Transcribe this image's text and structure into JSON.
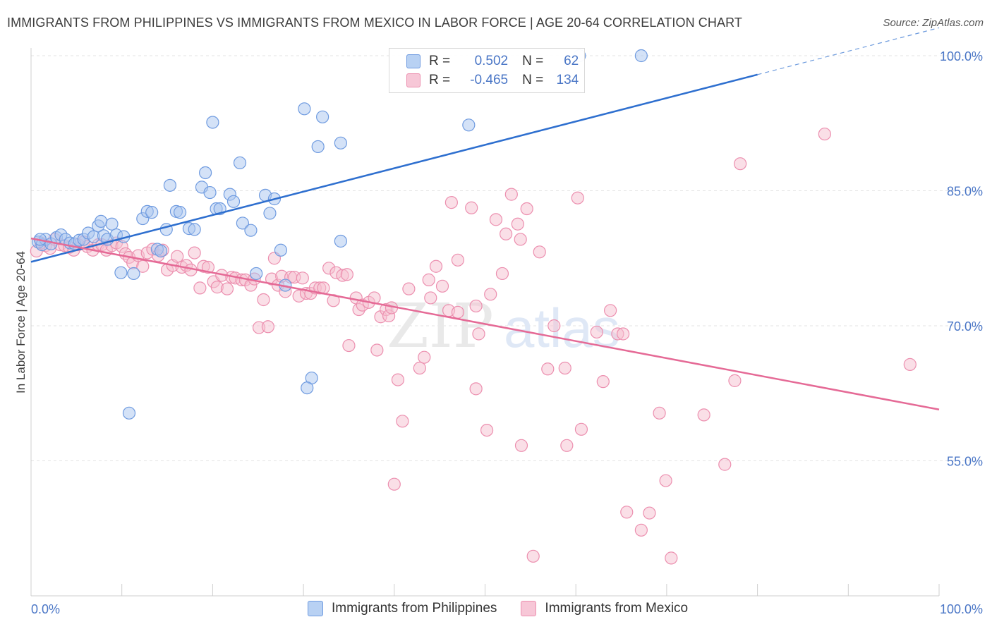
{
  "header": {
    "title": "IMMIGRANTS FROM PHILIPPINES VS IMMIGRANTS FROM MEXICO IN LABOR FORCE | AGE 20-64 CORRELATION CHART",
    "source": "Source: ZipAtlas.com"
  },
  "legend": {
    "r_label": "R =",
    "n_label": "N =",
    "rows": [
      {
        "r": "0.502",
        "n": "62"
      },
      {
        "r": "-0.465",
        "n": "134"
      }
    ]
  },
  "watermark": {
    "zip": "ZIP",
    "atlas": "atlas"
  },
  "colors": {
    "blue_fill": "#a9c6ef",
    "blue_stroke": "#6f9be0",
    "blue_line": "#2e6fcf",
    "pink_fill": "#f6bfd0",
    "pink_stroke": "#ec8faf",
    "pink_line": "#e56a96",
    "tick_label": "#4a76c6"
  },
  "chart_data": {
    "type": "scatter",
    "title": "IMMIGRANTS FROM PHILIPPINES VS IMMIGRANTS FROM MEXICO IN LABOR FORCE | AGE 20-64 CORRELATION CHART",
    "xlabel": "",
    "ylabel": "In Labor Force | Age 20-64",
    "xlim": [
      0,
      100
    ],
    "ylim": [
      40,
      101.5
    ],
    "x_tick_labels": [
      "0.0%",
      "100.0%"
    ],
    "y_ticks": [
      55,
      70,
      85,
      100
    ],
    "y_tick_labels": [
      "55.0%",
      "70.0%",
      "85.0%",
      "100.0%"
    ],
    "series": [
      {
        "name": "Immigrants from Philippines",
        "r": 0.502,
        "n": 62,
        "trend": {
          "x0": 0,
          "y0": 77.1,
          "x1": 80,
          "y1": 97.9,
          "dash_to_x": 100
        },
        "points": [
          [
            0.8,
            79.3
          ],
          [
            1.2,
            79.0
          ],
          [
            1.6,
            79.6
          ],
          [
            2.2,
            79.1
          ],
          [
            2.8,
            79.8
          ],
          [
            3.3,
            80.1
          ],
          [
            3.8,
            79.6
          ],
          [
            4.3,
            79.2
          ],
          [
            4.8,
            79.1
          ],
          [
            5.3,
            79.5
          ],
          [
            5.8,
            79.6
          ],
          [
            6.3,
            80.3
          ],
          [
            6.9,
            79.9
          ],
          [
            7.4,
            81.1
          ],
          [
            7.7,
            81.6
          ],
          [
            8.0,
            80.0
          ],
          [
            8.4,
            79.6
          ],
          [
            8.9,
            81.3
          ],
          [
            9.4,
            80.1
          ],
          [
            10.2,
            79.9
          ],
          [
            9.9,
            75.9
          ],
          [
            11.3,
            75.8
          ],
          [
            12.3,
            81.9
          ],
          [
            12.8,
            82.7
          ],
          [
            13.3,
            82.6
          ],
          [
            13.9,
            78.5
          ],
          [
            14.3,
            78.3
          ],
          [
            14.9,
            80.7
          ],
          [
            15.3,
            85.6
          ],
          [
            16.0,
            82.7
          ],
          [
            16.4,
            82.6
          ],
          [
            17.4,
            80.8
          ],
          [
            18.0,
            80.7
          ],
          [
            18.8,
            85.4
          ],
          [
            19.2,
            87.0
          ],
          [
            19.7,
            84.8
          ],
          [
            20.0,
            92.6
          ],
          [
            20.4,
            83.0
          ],
          [
            20.8,
            83.0
          ],
          [
            21.9,
            84.6
          ],
          [
            22.3,
            83.8
          ],
          [
            23.0,
            88.1
          ],
          [
            23.3,
            81.4
          ],
          [
            24.2,
            80.6
          ],
          [
            24.8,
            75.8
          ],
          [
            25.8,
            84.5
          ],
          [
            26.3,
            82.5
          ],
          [
            26.8,
            84.1
          ],
          [
            27.5,
            78.4
          ],
          [
            28.0,
            74.5
          ],
          [
            30.1,
            94.1
          ],
          [
            30.9,
            64.2
          ],
          [
            30.4,
            63.1
          ],
          [
            31.6,
            89.9
          ],
          [
            32.1,
            93.2
          ],
          [
            34.1,
            90.3
          ],
          [
            34.1,
            79.4
          ],
          [
            10.8,
            60.3
          ],
          [
            48.2,
            92.3
          ],
          [
            60.4,
            100.0
          ],
          [
            67.2,
            100.0
          ],
          [
            1.0,
            79.6
          ]
        ]
      },
      {
        "name": "Immigrants from Mexico",
        "r": -0.465,
        "n": 134,
        "trend": {
          "x0": 0,
          "y0": 79.7,
          "x1": 100,
          "y1": 60.7
        },
        "points": [
          [
            0.6,
            78.3
          ],
          [
            1.1,
            79.2
          ],
          [
            1.6,
            78.9
          ],
          [
            2.1,
            78.6
          ],
          [
            2.6,
            79.6
          ],
          [
            3.2,
            79.0
          ],
          [
            3.7,
            78.9
          ],
          [
            4.2,
            78.7
          ],
          [
            4.7,
            78.4
          ],
          [
            5.2,
            79.0
          ],
          [
            5.8,
            79.3
          ],
          [
            6.2,
            78.8
          ],
          [
            6.8,
            78.4
          ],
          [
            7.4,
            79.0
          ],
          [
            7.8,
            79.0
          ],
          [
            8.3,
            78.4
          ],
          [
            8.9,
            78.9
          ],
          [
            9.4,
            79.2
          ],
          [
            10.0,
            78.8
          ],
          [
            10.4,
            78.0
          ],
          [
            10.8,
            77.6
          ],
          [
            11.2,
            77.0
          ],
          [
            11.8,
            77.8
          ],
          [
            12.3,
            76.6
          ],
          [
            12.8,
            78.1
          ],
          [
            13.4,
            78.5
          ],
          [
            14.0,
            77.8
          ],
          [
            14.5,
            78.4
          ],
          [
            15.0,
            76.2
          ],
          [
            15.6,
            76.7
          ],
          [
            16.1,
            77.7
          ],
          [
            16.6,
            76.5
          ],
          [
            17.1,
            76.7
          ],
          [
            17.6,
            76.2
          ],
          [
            18.0,
            78.1
          ],
          [
            18.6,
            74.2
          ],
          [
            19.0,
            76.6
          ],
          [
            19.5,
            76.5
          ],
          [
            20.1,
            74.9
          ],
          [
            20.5,
            74.3
          ],
          [
            21.0,
            75.6
          ],
          [
            21.6,
            74.1
          ],
          [
            22.1,
            75.4
          ],
          [
            22.5,
            75.3
          ],
          [
            23.2,
            75.1
          ],
          [
            23.6,
            75.1
          ],
          [
            24.2,
            74.5
          ],
          [
            24.6,
            75.2
          ],
          [
            25.1,
            69.8
          ],
          [
            25.6,
            72.9
          ],
          [
            26.1,
            69.9
          ],
          [
            26.8,
            77.5
          ],
          [
            26.5,
            75.2
          ],
          [
            27.2,
            74.5
          ],
          [
            27.6,
            75.5
          ],
          [
            28.0,
            73.8
          ],
          [
            28.6,
            75.4
          ],
          [
            29.0,
            75.4
          ],
          [
            29.5,
            73.3
          ],
          [
            29.9,
            75.3
          ],
          [
            30.3,
            73.6
          ],
          [
            30.8,
            73.6
          ],
          [
            31.3,
            74.2
          ],
          [
            31.8,
            74.2
          ],
          [
            32.2,
            74.2
          ],
          [
            32.8,
            76.4
          ],
          [
            33.3,
            72.8
          ],
          [
            33.6,
            75.9
          ],
          [
            34.3,
            75.6
          ],
          [
            34.8,
            75.7
          ],
          [
            35.0,
            67.8
          ],
          [
            35.8,
            73.1
          ],
          [
            36.1,
            71.8
          ],
          [
            36.5,
            72.3
          ],
          [
            37.2,
            72.6
          ],
          [
            37.8,
            73.1
          ],
          [
            38.1,
            67.3
          ],
          [
            38.5,
            71.0
          ],
          [
            39.1,
            71.8
          ],
          [
            39.4,
            71.1
          ],
          [
            39.7,
            72.0
          ],
          [
            40.0,
            52.4
          ],
          [
            40.4,
            64.0
          ],
          [
            40.9,
            59.4
          ],
          [
            41.6,
            74.1
          ],
          [
            42.8,
            65.3
          ],
          [
            43.3,
            66.5
          ],
          [
            43.8,
            75.1
          ],
          [
            44.0,
            73.1
          ],
          [
            44.6,
            76.6
          ],
          [
            45.3,
            74.4
          ],
          [
            46.3,
            83.7
          ],
          [
            46.0,
            71.7
          ],
          [
            47.0,
            77.3
          ],
          [
            48.5,
            83.1
          ],
          [
            49.0,
            72.2
          ],
          [
            49.0,
            63.0
          ],
          [
            49.3,
            69.1
          ],
          [
            50.2,
            58.4
          ],
          [
            50.6,
            73.5
          ],
          [
            51.2,
            81.8
          ],
          [
            51.9,
            75.8
          ],
          [
            52.3,
            80.2
          ],
          [
            52.9,
            84.6
          ],
          [
            53.6,
            81.3
          ],
          [
            53.9,
            79.6
          ],
          [
            54.0,
            56.7
          ],
          [
            54.6,
            83.0
          ],
          [
            55.3,
            44.4
          ],
          [
            56.0,
            78.2
          ],
          [
            56.9,
            65.2
          ],
          [
            57.6,
            70.0
          ],
          [
            58.8,
            65.3
          ],
          [
            59.0,
            56.7
          ],
          [
            60.2,
            84.2
          ],
          [
            60.6,
            58.5
          ],
          [
            62.3,
            69.3
          ],
          [
            63.0,
            63.8
          ],
          [
            63.8,
            71.7
          ],
          [
            64.6,
            69.1
          ],
          [
            65.2,
            69.1
          ],
          [
            65.6,
            49.3
          ],
          [
            67.2,
            47.3
          ],
          [
            68.1,
            49.2
          ],
          [
            69.2,
            60.3
          ],
          [
            69.9,
            52.8
          ],
          [
            70.5,
            44.2
          ],
          [
            74.1,
            60.1
          ],
          [
            76.4,
            54.6
          ],
          [
            77.5,
            63.9
          ],
          [
            78.1,
            88.0
          ],
          [
            87.4,
            91.3
          ],
          [
            96.8,
            65.7
          ],
          [
            47.0,
            71.5
          ]
        ]
      }
    ],
    "legend_position": "top-center"
  },
  "bottom_legend": [
    {
      "label": "Immigrants from Philippines"
    },
    {
      "label": "Immigrants from Mexico"
    }
  ]
}
